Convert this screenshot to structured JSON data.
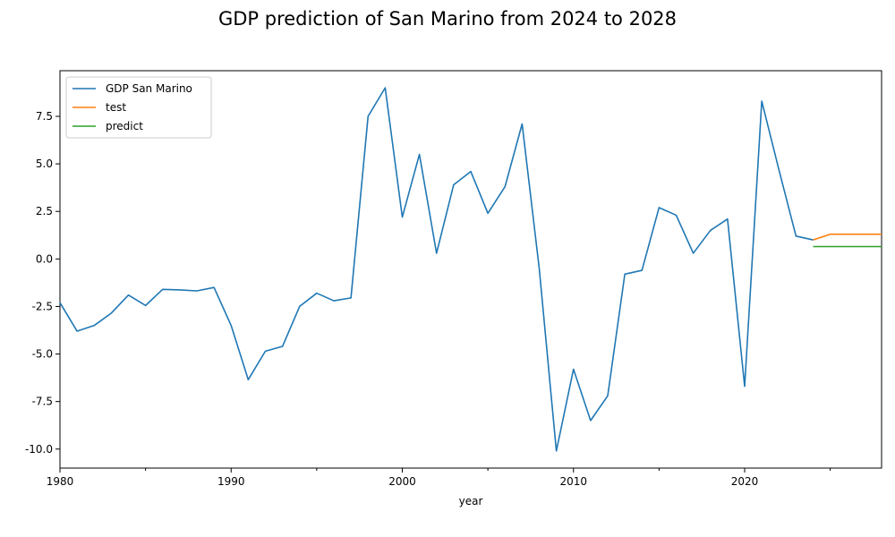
{
  "chart_data": {
    "type": "line",
    "title": "GDP prediction of San Marino from 2024 to 2028",
    "xlabel": "year",
    "ylabel": "",
    "xlim": [
      1980,
      2028
    ],
    "ylim": [
      -11.0,
      9.9
    ],
    "grid": false,
    "legend_position": "top-left",
    "x_tick_labels": [
      "1980",
      "1990",
      "2000",
      "2010",
      "2020"
    ],
    "y_tick_labels": [
      "-10.0",
      "-7.5",
      "-5.0",
      "-2.5",
      "0.0",
      "2.5",
      "5.0",
      "7.5"
    ],
    "series": [
      {
        "name": "GDP San Marino",
        "color": "#1f77b4",
        "x": [
          1980,
          1981,
          1982,
          1983,
          1984,
          1985,
          1986,
          1987,
          1988,
          1989,
          1990,
          1991,
          1992,
          1993,
          1994,
          1995,
          1996,
          1997,
          1998,
          1999,
          2000,
          2001,
          2002,
          2003,
          2004,
          2005,
          2006,
          2007,
          2008,
          2009,
          2010,
          2011,
          2012,
          2013,
          2014,
          2015,
          2016,
          2017,
          2018,
          2019,
          2020,
          2021,
          2022,
          2023,
          2024
        ],
        "values": [
          -2.3,
          -3.8,
          -3.5,
          -2.85,
          -1.9,
          -2.45,
          -1.6,
          -1.63,
          -1.68,
          -1.5,
          -3.5,
          -6.35,
          -4.85,
          -4.6,
          -2.5,
          -1.8,
          -2.2,
          -2.05,
          7.5,
          9.0,
          2.2,
          5.5,
          0.3,
          3.9,
          4.6,
          2.4,
          3.8,
          7.1,
          -0.5,
          -10.1,
          -5.8,
          -8.5,
          -7.2,
          -0.8,
          -0.6,
          2.7,
          2.3,
          0.3,
          1.5,
          2.1,
          -6.7,
          8.3,
          4.7,
          1.2,
          1.0
        ]
      },
      {
        "name": "test",
        "color": "#ff7f0e",
        "x": [
          2024,
          2025,
          2026,
          2027,
          2028
        ],
        "values": [
          1.0,
          1.3,
          1.3,
          1.3,
          1.3
        ]
      },
      {
        "name": "predict",
        "color": "#2ca02c",
        "x": [
          2024,
          2025,
          2026,
          2027,
          2028
        ],
        "values": [
          0.65,
          0.65,
          0.65,
          0.65,
          0.65
        ]
      }
    ]
  }
}
